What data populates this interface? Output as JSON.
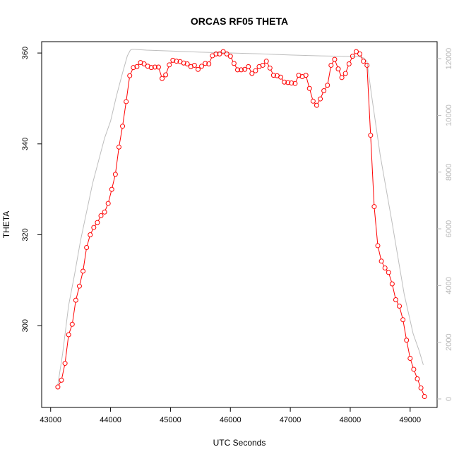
{
  "chart_data": {
    "type": "line",
    "title": "ORCAS RF05 THETA",
    "xlabel": "UTC Seconds",
    "ylabel": "THETA",
    "xlim": [
      42850,
      49450
    ],
    "ylim": [
      282,
      362.5
    ],
    "y2lim": [
      -300,
      12600
    ],
    "x_ticks": [
      43000,
      44000,
      45000,
      46000,
      47000,
      48000,
      49000
    ],
    "x_tick_labels": [
      "43000",
      "44000",
      "45000",
      "46000",
      "47000",
      "48000",
      "49000"
    ],
    "y_ticks": [
      300,
      320,
      340,
      360
    ],
    "y_tick_labels": [
      "300",
      "320",
      "340",
      "360"
    ],
    "y2_ticks": [
      0,
      2000,
      4000,
      6000,
      8000,
      10000,
      12000
    ],
    "y2_tick_labels": [
      "0",
      "2000",
      "4000",
      "6000",
      "8000",
      "10000",
      "12000"
    ],
    "grid": false,
    "colors": {
      "theta": "#ff0000",
      "altitude": "#bebebe"
    },
    "series": [
      {
        "axis": "left",
        "style": "line-points",
        "x": [
          43120,
          43180,
          43240,
          43300,
          43360,
          43420,
          43480,
          43540,
          43600,
          43660,
          43720,
          43780,
          43840,
          43900,
          43960,
          44020,
          44080,
          44140,
          44200,
          44260,
          44320,
          44380,
          44440,
          44500,
          44560,
          44620,
          44680,
          44740,
          44800,
          44860,
          44920,
          44980,
          45040,
          45100,
          45160,
          45220,
          45280,
          45340,
          45400,
          45460,
          45520,
          45580,
          45640,
          45700,
          45760,
          45820,
          45880,
          45940,
          46000,
          46060,
          46120,
          46180,
          46240,
          46300,
          46360,
          46420,
          46480,
          46540,
          46600,
          46660,
          46720,
          46780,
          46840,
          46900,
          46960,
          47020,
          47080,
          47140,
          47200,
          47260,
          47320,
          47380,
          47440,
          47500,
          47560,
          47620,
          47680,
          47740,
          47800,
          47860,
          47920,
          47980,
          48040,
          48100,
          48160,
          48220,
          48280,
          48340,
          48400,
          48460,
          48520,
          48580,
          48640,
          48700,
          48760,
          48820,
          48880,
          48940,
          49000,
          49060,
          49120,
          49180,
          49240
        ],
        "y": [
          286.5,
          288,
          291.7,
          298,
          300.3,
          305.6,
          308.7,
          312,
          317.2,
          320,
          321.6,
          322.7,
          324.2,
          325,
          326.9,
          330,
          333.3,
          339.3,
          343.9,
          349.3,
          355,
          356.8,
          357,
          357.9,
          357.6,
          357.1,
          356.8,
          356.9,
          356.9,
          354.4,
          355.2,
          357.4,
          358.4,
          358.2,
          358.1,
          357.8,
          357.6,
          357,
          357.3,
          356.4,
          357.1,
          357.7,
          357.6,
          359.4,
          359.8,
          359.8,
          360.3,
          359.8,
          359.3,
          357.7,
          356.3,
          356.3,
          356.4,
          357,
          355.5,
          356.1,
          357,
          357.3,
          358.2,
          356.7,
          355.1,
          355,
          354.7,
          353.6,
          353.5,
          353.4,
          353.3,
          355.1,
          354.8,
          355.1,
          352.2,
          349.4,
          348.5,
          349.9,
          351.7,
          352.9,
          357.3,
          358.6,
          356.5,
          354.6,
          355.5,
          357.6,
          359.3,
          360.3,
          359.8,
          358.2,
          357.3,
          341.9,
          326.2,
          317.6,
          314.2,
          312.7,
          311.7,
          309.2,
          305.7,
          304.3,
          301.3,
          296.8,
          292.8,
          290.4,
          288.3,
          286.3,
          284.4
        ]
      },
      {
        "axis": "right",
        "style": "line",
        "x": [
          43120,
          43200,
          43300,
          43400,
          43500,
          43600,
          43700,
          43800,
          43900,
          44000,
          44100,
          44200,
          44280,
          44330,
          44360,
          44400,
          44600,
          45000,
          45500,
          46000,
          46500,
          47000,
          47500,
          48000,
          48150,
          48230,
          48280,
          48350,
          48500,
          48700,
          48900,
          49050,
          49150,
          49220
        ],
        "y": [
          500,
          1600,
          3300,
          4400,
          5600,
          6600,
          7600,
          8400,
          9200,
          9800,
          10700,
          11500,
          12100,
          12300,
          12330,
          12330,
          12300,
          12270,
          12230,
          12200,
          12170,
          12130,
          12100,
          12080,
          12070,
          12020,
          11900,
          10800,
          8600,
          6200,
          3700,
          2300,
          1700,
          1200
        ]
      }
    ]
  }
}
